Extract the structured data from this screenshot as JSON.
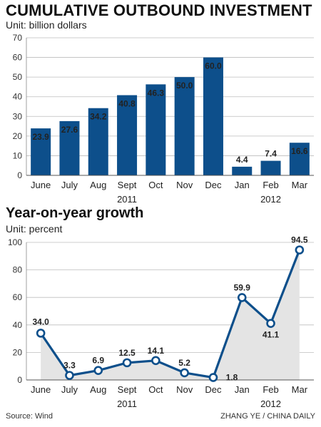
{
  "chart_data": [
    {
      "type": "bar",
      "title": "CUMULATIVE OUTBOUND INVESTMENT",
      "unit_label": "Unit: billion dollars",
      "categories": [
        "June",
        "July",
        "Aug",
        "Sept",
        "Oct",
        "Nov",
        "Dec",
        "Jan",
        "Feb",
        "Mar"
      ],
      "values": [
        23.9,
        27.6,
        34.2,
        40.8,
        46.3,
        50.0,
        60.0,
        4.4,
        7.4,
        16.6
      ],
      "value_labels": [
        "23.9",
        "27.6",
        "34.2",
        "40.8",
        "46.3",
        "50.0",
        "60.0",
        "4.4",
        "7.4",
        "16.6"
      ],
      "year_labels": [
        "2011",
        "2012"
      ],
      "yticks": [
        "0",
        "10",
        "20",
        "30",
        "40",
        "50",
        "60",
        "70"
      ],
      "ylim": [
        0,
        70
      ],
      "grid": true,
      "bar_color": "#0d4f8b"
    },
    {
      "type": "line",
      "title": "Year-on-year growth",
      "unit_label": "Unit: percent",
      "categories": [
        "June",
        "July",
        "Aug",
        "Sept",
        "Oct",
        "Nov",
        "Dec",
        "Jan",
        "Feb",
        "Mar"
      ],
      "values": [
        34.0,
        3.3,
        6.9,
        12.5,
        14.1,
        5.2,
        1.8,
        59.9,
        41.1,
        94.5
      ],
      "value_labels": [
        "34.0",
        "3.3",
        "6.9",
        "12.5",
        "14.1",
        "5.2",
        "1.8",
        "59.9",
        "41.1",
        "94.5"
      ],
      "year_labels": [
        "2011",
        "2012"
      ],
      "yticks": [
        "0",
        "20",
        "40",
        "60",
        "80",
        "100"
      ],
      "ylim": [
        0,
        100
      ],
      "grid": true,
      "line_color": "#0d4f8b",
      "area_color": "#e4e4e4"
    }
  ],
  "footer": {
    "source": "Source: Wind",
    "credit": "ZHANG YE / CHINA DAILY"
  }
}
